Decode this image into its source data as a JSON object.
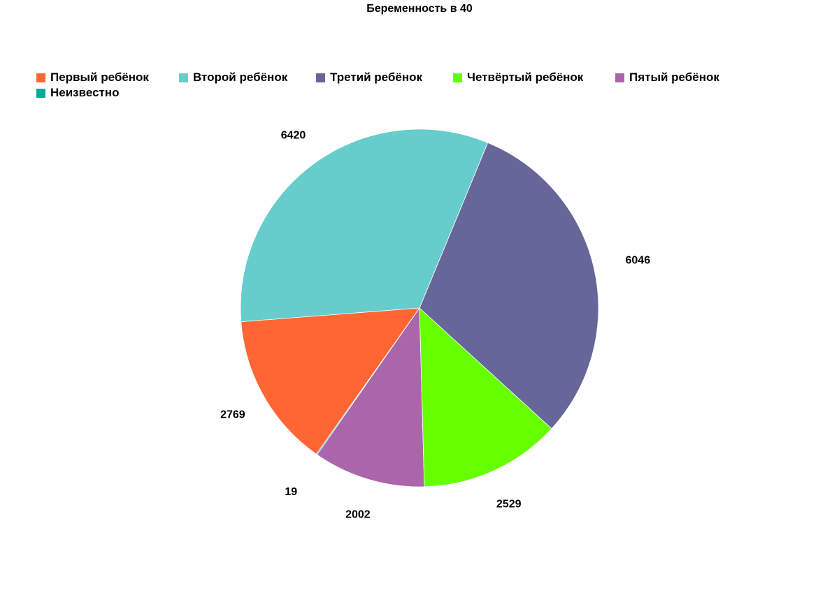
{
  "chart_data": {
    "type": "pie",
    "title": "Беременность в 40",
    "categories": [
      "Первый ребёнок",
      "Второй ребёнок",
      "Третий ребёнок",
      "Четвёртый ребёнок",
      "Пятый ребёнок",
      "Неизвестно"
    ],
    "values": [
      2769,
      6420,
      6046,
      2529,
      2002,
      19
    ],
    "colors": [
      "#ff6633",
      "#66cccc",
      "#666699",
      "#66ff00",
      "#aa66aa",
      "#00aa99"
    ],
    "legend_position": "top",
    "data_labels": true
  }
}
